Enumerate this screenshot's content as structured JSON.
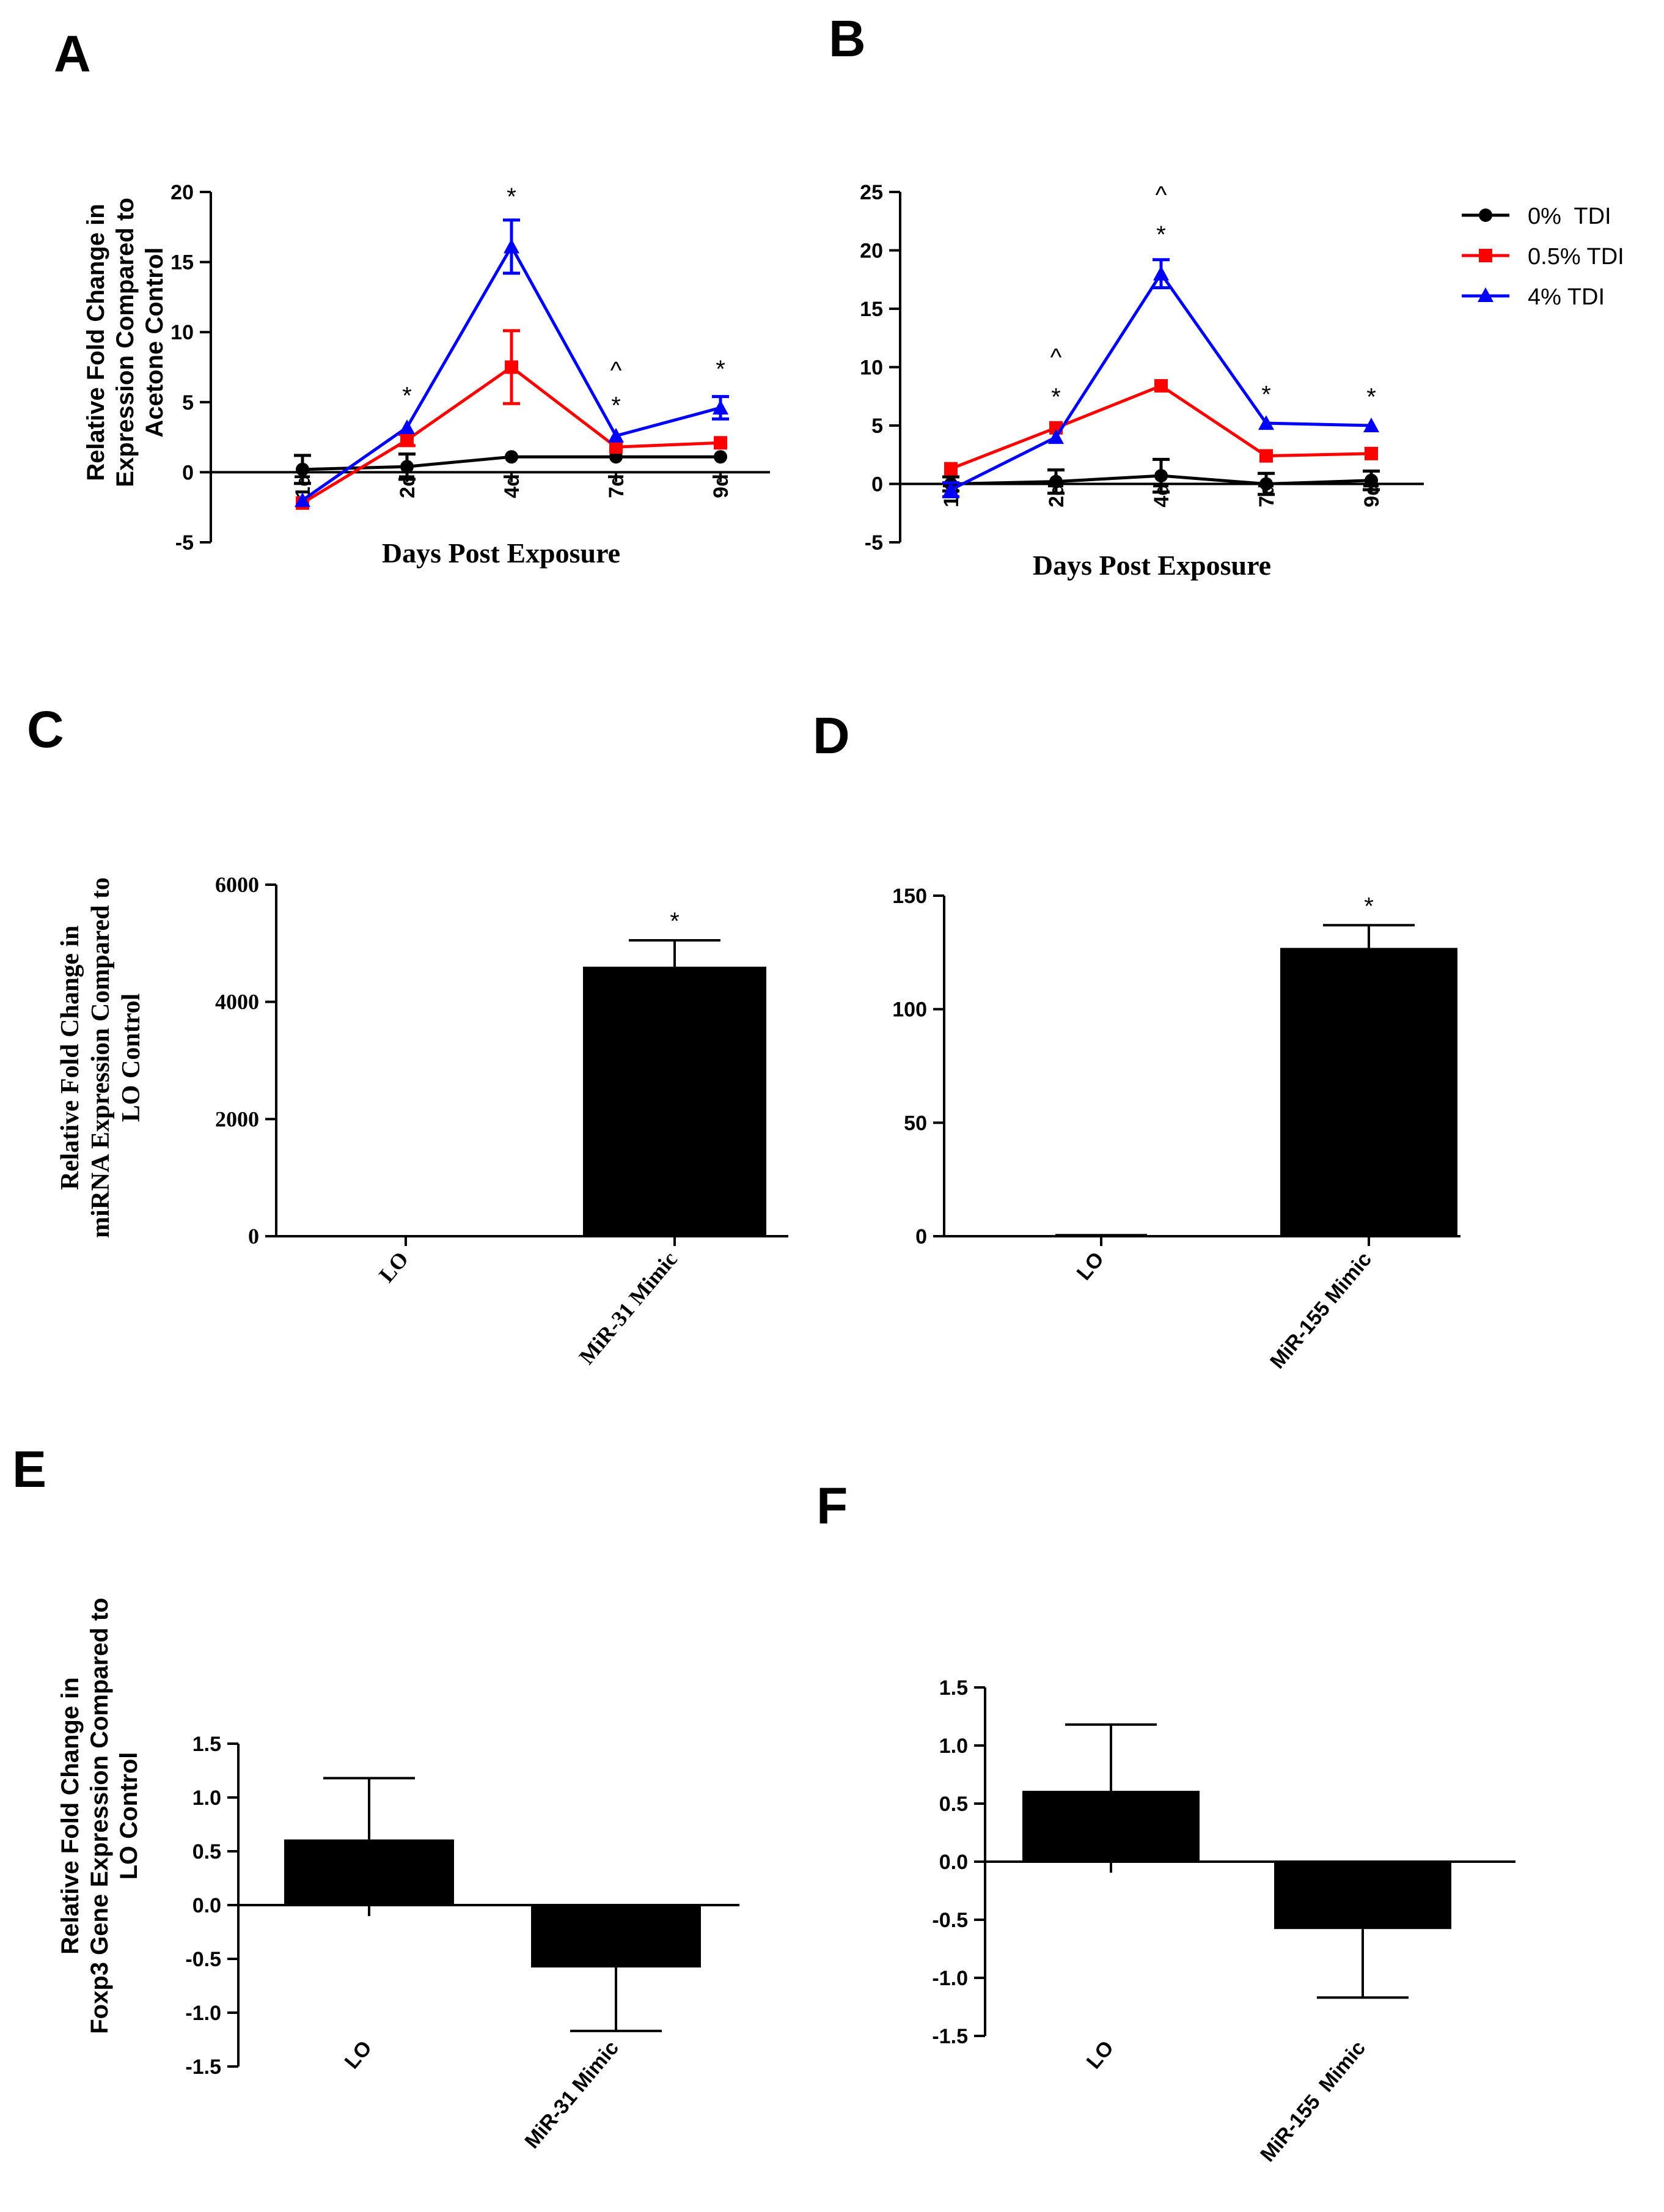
{
  "panel_letters": [
    "A",
    "B",
    "C",
    "D",
    "E",
    "F"
  ],
  "legend": {
    "entries": [
      {
        "label": "0%  TDI",
        "color": "#000000",
        "marker": "circle"
      },
      {
        "label": "0.5% TDI",
        "color": "#ff0000",
        "marker": "square"
      },
      {
        "label": "4% TDI",
        "color": "#0000ff",
        "marker": "triangle"
      }
    ]
  },
  "chart_data": [
    {
      "panel": "A",
      "type": "line",
      "xlabel": "Days Post Exposure",
      "ylabel": [
        "Relative Fold Change in",
        "Expression Compared to",
        "Acetone Control"
      ],
      "ylim": [
        -5,
        20
      ],
      "yticks": [
        "-5",
        "0",
        "5",
        "10",
        "15",
        "20"
      ],
      "categories": [
        "1d",
        "2d",
        "4d",
        "7d",
        "9d"
      ],
      "series": [
        {
          "name": "0%  TDI",
          "color": "#000000",
          "marker": "circle",
          "values": [
            0.2,
            0.4,
            1.1,
            1.1,
            1.1
          ],
          "errors": [
            1.0,
            0.9,
            0,
            0,
            0
          ]
        },
        {
          "name": "0.5% TDI",
          "color": "#ff0000",
          "marker": "square",
          "values": [
            -2.2,
            2.3,
            7.5,
            1.8,
            2.1
          ],
          "errors": [
            0,
            0.4,
            2.6,
            0,
            0
          ]
        },
        {
          "name": "4% TDI",
          "color": "#0000ff",
          "marker": "triangle",
          "values": [
            -2.0,
            3.2,
            16.1,
            2.6,
            4.6
          ],
          "errors": [
            0,
            0,
            1.9,
            0,
            0.8
          ]
        }
      ],
      "annotations": [
        {
          "x": "2d",
          "y": 5.5,
          "text": "*"
        },
        {
          "x": "4d",
          "y": 19.7,
          "text": "*"
        },
        {
          "x": "7d",
          "y": 7.3,
          "text": "^"
        },
        {
          "x": "7d",
          "y": 4.8,
          "text": "*"
        },
        {
          "x": "9d",
          "y": 7.4,
          "text": "*"
        }
      ]
    },
    {
      "panel": "B",
      "type": "line",
      "xlabel": "Days Post Exposure",
      "ylabel": [],
      "ylim": [
        -5,
        25
      ],
      "yticks": [
        "-5",
        "0",
        "5",
        "10",
        "15",
        "20",
        "25"
      ],
      "categories": [
        "1d",
        "2d",
        "4d",
        "7d",
        "9d"
      ],
      "series": [
        {
          "name": "0%  TDI",
          "color": "#000000",
          "marker": "circle",
          "values": [
            0.0,
            0.2,
            0.7,
            0.0,
            0.3
          ],
          "errors": [
            0.6,
            1.0,
            1.4,
            0.9,
            0.8
          ]
        },
        {
          "name": "0.5% TDI",
          "color": "#ff0000",
          "marker": "square",
          "values": [
            1.3,
            4.8,
            8.4,
            2.4,
            2.6
          ],
          "errors": [
            0,
            0,
            0,
            0,
            0
          ]
        },
        {
          "name": "4% TDI",
          "color": "#0000ff",
          "marker": "triangle",
          "values": [
            -0.5,
            4.0,
            18.0,
            5.2,
            5.0
          ],
          "errors": [
            0.6,
            0,
            1.2,
            0,
            0
          ]
        }
      ],
      "annotations": [
        {
          "x": "2d",
          "y": 10.9,
          "text": "^"
        },
        {
          "x": "2d",
          "y": 7.5,
          "text": "*"
        },
        {
          "x": "4d",
          "y": 24.8,
          "text": "^"
        },
        {
          "x": "4d",
          "y": 21.4,
          "text": "*"
        },
        {
          "x": "7d",
          "y": 7.7,
          "text": "*"
        },
        {
          "x": "9d",
          "y": 7.5,
          "text": "*"
        }
      ]
    },
    {
      "panel": "C",
      "type": "bar",
      "xlabel": "",
      "ylabel": [
        "Relative Fold Change in",
        "miRNA Expression Compared to",
        "LO Control"
      ],
      "ylim": [
        0,
        6000
      ],
      "yticks": [
        "0",
        "2000",
        "4000",
        "6000"
      ],
      "categories": [
        "LO",
        "MiR-31 Mimic"
      ],
      "values": [
        1,
        4600
      ],
      "errors": [
        0,
        450
      ],
      "annotations": [
        {
          "category": "MiR-31 Mimic",
          "text": "*"
        }
      ]
    },
    {
      "panel": "D",
      "type": "bar",
      "xlabel": "",
      "ylabel": [],
      "ylim": [
        0,
        150
      ],
      "yticks": [
        "0",
        "50",
        "100",
        "150"
      ],
      "categories": [
        "LO",
        "MiR-155 Mimic"
      ],
      "values": [
        1,
        127
      ],
      "errors": [
        0,
        10
      ],
      "annotations": [
        {
          "category": "MiR-155 Mimic",
          "text": "*"
        }
      ]
    },
    {
      "panel": "E",
      "type": "bar",
      "xlabel": "",
      "ylabel": [
        "Relative Fold Change in",
        "Foxp3 Gene Expression Compared to",
        "LO Control"
      ],
      "ylim": [
        -1.5,
        1.5
      ],
      "yticks": [
        "-1.5",
        "-1.0",
        "-0.5",
        "0.0",
        "0.5",
        "1.0",
        "1.5"
      ],
      "categories": [
        "LO",
        "MiR-31 Mimic"
      ],
      "values": [
        0.61,
        -0.58
      ],
      "errors": [
        0.57,
        0.59
      ],
      "annotations": []
    },
    {
      "panel": "F",
      "type": "bar",
      "xlabel": "",
      "ylabel": [],
      "ylim": [
        -1.5,
        1.5
      ],
      "yticks": [
        "-1.5",
        "-1.0",
        "-0.5",
        "0.0",
        "0.5",
        "1.0",
        "1.5"
      ],
      "categories": [
        "LO",
        "MiR-155  Mimic"
      ],
      "values": [
        0.61,
        -0.58
      ],
      "errors": [
        0.57,
        0.59
      ],
      "annotations": []
    }
  ]
}
